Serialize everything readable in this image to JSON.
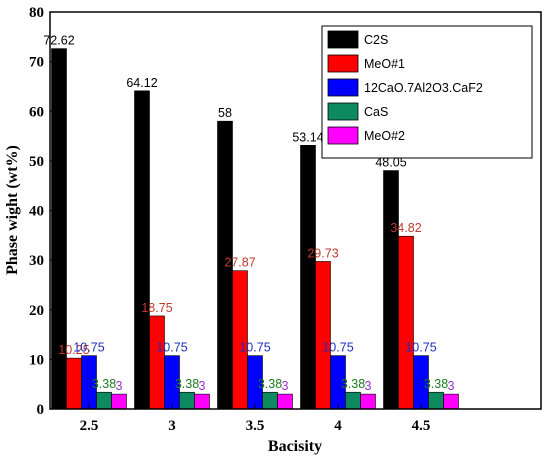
{
  "chart_data": {
    "type": "bar",
    "xlabel": "Bacisity",
    "ylabel": "Phase wight (wt%)",
    "categories": [
      "2.5",
      "3",
      "3.5",
      "4",
      "4.5"
    ],
    "ylim": [
      0,
      80
    ],
    "yticks": [
      "0",
      "10",
      "20",
      "30",
      "40",
      "50",
      "60",
      "70",
      "80"
    ],
    "grid": false,
    "legend_position": "top-right",
    "series": [
      {
        "name": "C2S",
        "color": "#000000",
        "label_color": "#000000",
        "values": [
          72.62,
          64.12,
          58,
          53.14,
          48.05
        ],
        "labels": [
          "72.62",
          "64.12",
          "58",
          "53.14",
          "48.05"
        ]
      },
      {
        "name": "MeO#1",
        "color": "#ff0000",
        "label_color": "#c0392b",
        "values": [
          10.25,
          18.75,
          27.87,
          29.73,
          34.82
        ],
        "labels": [
          "10.25",
          "18.75",
          "27.87",
          "29.73",
          "34.82"
        ]
      },
      {
        "name": "12CaO.7Al2O3.CaF2",
        "color": "#0000ff",
        "label_color": "#1f2fbf",
        "values": [
          10.75,
          10.75,
          10.75,
          10.75,
          10.75
        ],
        "labels": [
          "10.75",
          "10.75",
          "10.75",
          "10.75",
          "10.75"
        ]
      },
      {
        "name": "CaS",
        "color": "#0d8a5f",
        "label_color": "#1e7a1e",
        "values": [
          3.38,
          3.38,
          3.38,
          3.38,
          3.38
        ],
        "labels": [
          "3.38",
          "3.38",
          "3.38",
          "3.38",
          "3.38"
        ]
      },
      {
        "name": "MeO#2",
        "color": "#ff00ff",
        "label_color": "#9b30c9",
        "values": [
          3,
          3,
          3,
          3,
          3
        ],
        "labels": [
          "3",
          "3",
          "3",
          "3",
          "3"
        ]
      }
    ]
  }
}
